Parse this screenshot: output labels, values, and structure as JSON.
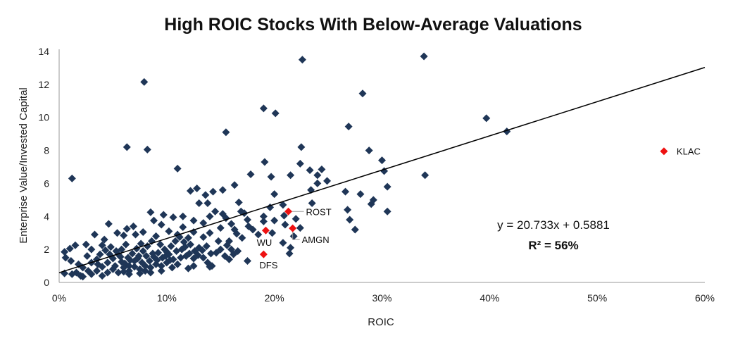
{
  "chart_data": {
    "type": "scatter",
    "title": "High ROIC Stocks With Below-Average Valuations",
    "xlabel": "ROIC",
    "ylabel": "Enterprise Value/Invested Capital",
    "xlim": [
      0,
      0.6
    ],
    "ylim": [
      0,
      14
    ],
    "x_ticks": [
      "0%",
      "10%",
      "20%",
      "30%",
      "40%",
      "50%",
      "60%"
    ],
    "y_ticks": [
      "0",
      "2",
      "4",
      "6",
      "8",
      "10",
      "12",
      "14"
    ],
    "grid": false,
    "trendline": {
      "slope": 20.733,
      "intercept": 0.5881
    },
    "equation_label": "y = 20.733x + 0.5881",
    "r2_label": "R² = 56%",
    "colors": {
      "points": "#1f3657",
      "highlight": "#ee1111",
      "trendline": "#000000",
      "callout": "#999999"
    },
    "highlighted": [
      {
        "label": "KLAC",
        "x": 0.562,
        "y": 7.95
      },
      {
        "label": "ROST",
        "x": 0.213,
        "y": 4.3
      },
      {
        "label": "WU",
        "x": 0.192,
        "y": 3.15
      },
      {
        "label": "AMGN",
        "x": 0.217,
        "y": 3.28
      },
      {
        "label": "DFS",
        "x": 0.19,
        "y": 1.7
      }
    ],
    "points": [
      [
        0.012,
        6.3
      ],
      [
        0.063,
        8.2
      ],
      [
        0.079,
        12.15
      ],
      [
        0.082,
        8.05
      ],
      [
        0.11,
        6.9
      ],
      [
        0.19,
        10.55
      ],
      [
        0.201,
        10.25
      ],
      [
        0.155,
        9.1
      ],
      [
        0.226,
        13.5
      ],
      [
        0.339,
        13.7
      ],
      [
        0.282,
        11.45
      ],
      [
        0.269,
        9.45
      ],
      [
        0.397,
        9.95
      ],
      [
        0.416,
        9.15
      ],
      [
        0.288,
        8.0
      ],
      [
        0.225,
        8.2
      ],
      [
        0.3,
        7.4
      ],
      [
        0.302,
        6.75
      ],
      [
        0.224,
        7.2
      ],
      [
        0.24,
        6.5
      ],
      [
        0.244,
        6.85
      ],
      [
        0.249,
        6.15
      ],
      [
        0.233,
        6.8
      ],
      [
        0.215,
        6.5
      ],
      [
        0.24,
        6.0
      ],
      [
        0.234,
        5.6
      ],
      [
        0.235,
        4.8
      ],
      [
        0.28,
        5.35
      ],
      [
        0.266,
        5.5
      ],
      [
        0.305,
        5.8
      ],
      [
        0.34,
        6.5
      ],
      [
        0.305,
        4.3
      ],
      [
        0.29,
        4.75
      ],
      [
        0.292,
        5.0
      ],
      [
        0.275,
        3.2
      ],
      [
        0.27,
        3.8
      ],
      [
        0.268,
        4.4
      ],
      [
        0.178,
        6.55
      ],
      [
        0.191,
        7.3
      ],
      [
        0.197,
        6.4
      ],
      [
        0.163,
        5.9
      ],
      [
        0.152,
        5.6
      ],
      [
        0.167,
        4.85
      ],
      [
        0.169,
        4.3
      ],
      [
        0.2,
        5.35
      ],
      [
        0.208,
        4.7
      ],
      [
        0.196,
        4.55
      ],
      [
        0.19,
        4.0
      ],
      [
        0.19,
        3.7
      ],
      [
        0.2,
        3.75
      ],
      [
        0.209,
        4.05
      ],
      [
        0.22,
        3.85
      ],
      [
        0.224,
        3.3
      ],
      [
        0.198,
        3.0
      ],
      [
        0.185,
        2.9
      ],
      [
        0.18,
        3.2
      ],
      [
        0.175,
        1.3
      ],
      [
        0.208,
        2.4
      ],
      [
        0.214,
        1.75
      ],
      [
        0.215,
        2.1
      ],
      [
        0.218,
        2.8
      ],
      [
        0.21,
        3.5
      ],
      [
        0.122,
        5.55
      ],
      [
        0.128,
        5.7
      ],
      [
        0.143,
        5.5
      ],
      [
        0.136,
        5.3
      ],
      [
        0.138,
        4.8
      ],
      [
        0.145,
        4.3
      ],
      [
        0.152,
        4.15
      ],
      [
        0.155,
        3.9
      ],
      [
        0.16,
        3.55
      ],
      [
        0.163,
        3.2
      ],
      [
        0.165,
        2.95
      ],
      [
        0.17,
        2.7
      ],
      [
        0.158,
        2.5
      ],
      [
        0.16,
        2.0
      ],
      [
        0.175,
        3.8
      ],
      [
        0.176,
        3.4
      ],
      [
        0.172,
        4.2
      ],
      [
        0.13,
        4.8
      ],
      [
        0.097,
        4.1
      ],
      [
        0.106,
        3.95
      ],
      [
        0.085,
        4.25
      ],
      [
        0.115,
        4.0
      ],
      [
        0.125,
        3.75
      ],
      [
        0.134,
        3.6
      ],
      [
        0.14,
        4.0
      ],
      [
        0.15,
        3.3
      ],
      [
        0.14,
        3.0
      ],
      [
        0.134,
        2.75
      ],
      [
        0.148,
        2.5
      ],
      [
        0.156,
        2.25
      ],
      [
        0.12,
        2.7
      ],
      [
        0.125,
        3.05
      ],
      [
        0.115,
        3.35
      ],
      [
        0.095,
        3.5
      ],
      [
        0.088,
        3.75
      ],
      [
        0.102,
        3.1
      ],
      [
        0.11,
        2.9
      ],
      [
        0.071,
        2.9
      ],
      [
        0.078,
        3.05
      ],
      [
        0.069,
        3.4
      ],
      [
        0.063,
        3.25
      ],
      [
        0.046,
        3.55
      ],
      [
        0.054,
        3.0
      ],
      [
        0.06,
        2.85
      ],
      [
        0.042,
        2.6
      ],
      [
        0.033,
        2.9
      ],
      [
        0.04,
        2.25
      ],
      [
        0.03,
        2.0
      ],
      [
        0.025,
        2.3
      ],
      [
        0.015,
        2.25
      ],
      [
        0.01,
        2.05
      ],
      [
        0.005,
        1.85
      ],
      [
        0.006,
        1.5
      ],
      [
        0.011,
        1.3
      ],
      [
        0.018,
        1.1
      ],
      [
        0.022,
        0.9
      ],
      [
        0.027,
        0.7
      ],
      [
        0.03,
        0.5
      ],
      [
        0.02,
        0.4
      ],
      [
        0.035,
        0.7
      ],
      [
        0.04,
        0.95
      ],
      [
        0.045,
        1.2
      ],
      [
        0.05,
        1.45
      ],
      [
        0.055,
        1.7
      ],
      [
        0.058,
        2.0
      ],
      [
        0.062,
        2.3
      ],
      [
        0.065,
        1.0
      ],
      [
        0.07,
        1.3
      ],
      [
        0.074,
        1.6
      ],
      [
        0.078,
        1.9
      ],
      [
        0.082,
        2.2
      ],
      [
        0.086,
        2.5
      ],
      [
        0.09,
        2.8
      ],
      [
        0.094,
        2.3
      ],
      [
        0.098,
        2.0
      ],
      [
        0.102,
        1.7
      ],
      [
        0.106,
        1.4
      ],
      [
        0.11,
        1.1
      ],
      [
        0.114,
        2.0
      ],
      [
        0.118,
        1.6
      ],
      [
        0.122,
        2.3
      ],
      [
        0.126,
        1.9
      ],
      [
        0.13,
        2.1
      ],
      [
        0.134,
        1.5
      ],
      [
        0.138,
        1.2
      ],
      [
        0.142,
        1.0
      ],
      [
        0.146,
        1.8
      ],
      [
        0.15,
        2.0
      ],
      [
        0.154,
        1.6
      ],
      [
        0.158,
        1.4
      ],
      [
        0.162,
        1.7
      ],
      [
        0.166,
        1.9
      ],
      [
        0.045,
        0.6
      ],
      [
        0.05,
        0.8
      ],
      [
        0.055,
        0.6
      ],
      [
        0.06,
        0.9
      ],
      [
        0.065,
        0.7
      ],
      [
        0.07,
        0.95
      ],
      [
        0.075,
        0.8
      ],
      [
        0.08,
        1.0
      ],
      [
        0.085,
        0.9
      ],
      [
        0.09,
        1.1
      ],
      [
        0.095,
        1.0
      ],
      [
        0.1,
        1.2
      ],
      [
        0.052,
        1.0
      ],
      [
        0.058,
        1.25
      ],
      [
        0.064,
        1.5
      ],
      [
        0.068,
        1.75
      ],
      [
        0.072,
        2.05
      ],
      [
        0.076,
        2.35
      ],
      [
        0.084,
        1.3
      ],
      [
        0.088,
        1.55
      ],
      [
        0.092,
        1.8
      ],
      [
        0.096,
        1.5
      ],
      [
        0.1,
        1.85
      ],
      [
        0.104,
        2.2
      ],
      [
        0.108,
        2.5
      ],
      [
        0.112,
        2.75
      ],
      [
        0.116,
        2.45
      ],
      [
        0.035,
        1.4
      ],
      [
        0.038,
        1.7
      ],
      [
        0.043,
        1.95
      ],
      [
        0.048,
        2.15
      ],
      [
        0.026,
        1.6
      ],
      [
        0.03,
        1.2
      ],
      [
        0.016,
        0.6
      ],
      [
        0.012,
        0.5
      ],
      [
        0.005,
        0.55
      ],
      [
        0.047,
        1.7
      ],
      [
        0.053,
        1.9
      ],
      [
        0.057,
        1.55
      ],
      [
        0.061,
        1.15
      ],
      [
        0.066,
        1.35
      ],
      [
        0.073,
        1.45
      ],
      [
        0.077,
        1.2
      ],
      [
        0.081,
        1.6
      ],
      [
        0.087,
        1.75
      ],
      [
        0.091,
        1.35
      ],
      [
        0.099,
        1.6
      ],
      [
        0.103,
        1.35
      ],
      [
        0.109,
        1.9
      ],
      [
        0.113,
        1.5
      ],
      [
        0.117,
        2.15
      ],
      [
        0.121,
        1.75
      ],
      [
        0.125,
        1.45
      ],
      [
        0.129,
        1.65
      ],
      [
        0.133,
        1.95
      ],
      [
        0.137,
        2.2
      ],
      [
        0.141,
        1.75
      ],
      [
        0.14,
        0.95
      ],
      [
        0.125,
        1.0
      ],
      [
        0.12,
        0.85
      ],
      [
        0.105,
        0.9
      ],
      [
        0.095,
        0.7
      ],
      [
        0.085,
        0.6
      ],
      [
        0.075,
        0.55
      ],
      [
        0.065,
        0.5
      ],
      [
        0.022,
        0.35
      ],
      [
        0.04,
        0.4
      ],
      [
        0.06,
        0.65
      ],
      [
        0.08,
        0.7
      ],
      [
        0.036,
        1.1
      ]
    ]
  }
}
